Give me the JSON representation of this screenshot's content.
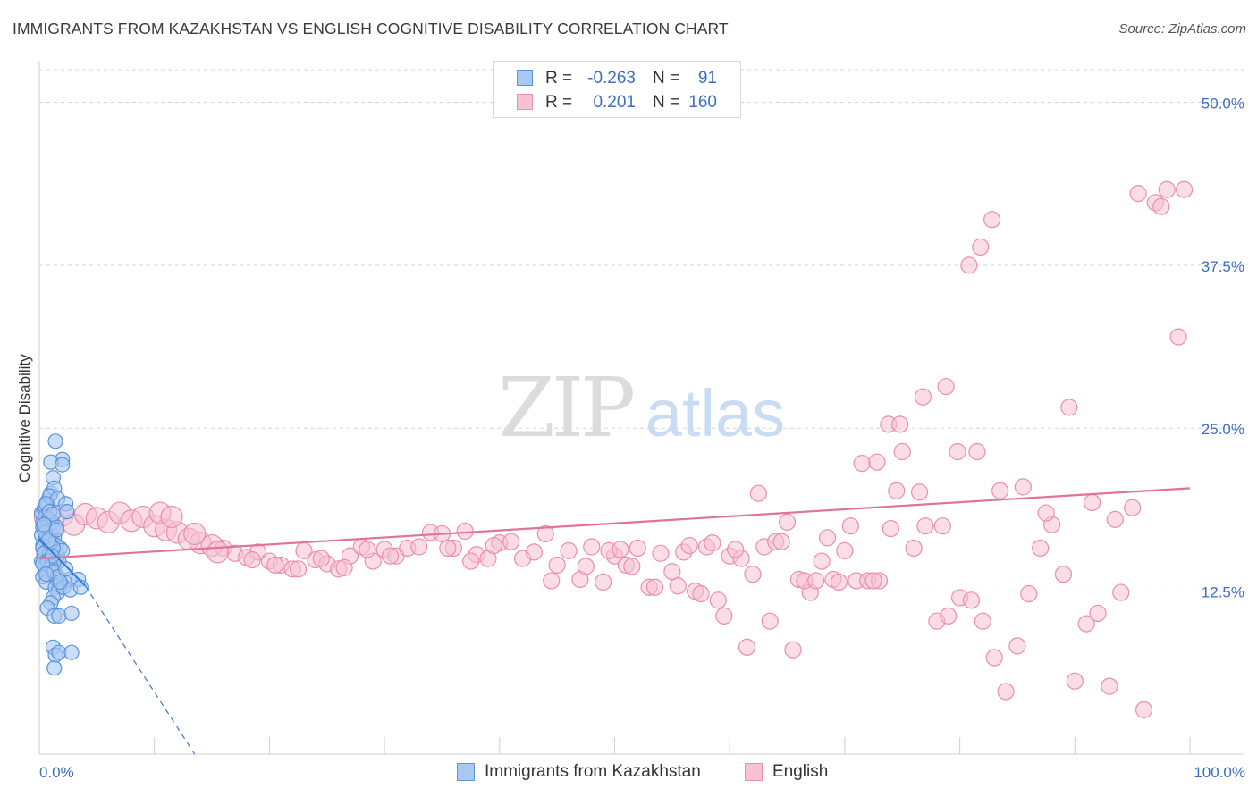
{
  "title": "IMMIGRANTS FROM KAZAKHSTAN VS ENGLISH COGNITIVE DISABILITY CORRELATION CHART",
  "source": "Source: ZipAtlas.com",
  "watermark": {
    "zip": "ZIP",
    "atlas": "atlas"
  },
  "legend_top": [
    {
      "r_label": "R =",
      "r_value": "-0.263",
      "n_label": "N =",
      "n_value": "91"
    },
    {
      "r_label": "R =",
      "r_value": "0.201",
      "n_label": "N =",
      "n_value": "160"
    }
  ],
  "colors": {
    "blue_fill": "#a9c8f1",
    "blue_stroke": "#5b93dc",
    "blue_line": "#3a78d4",
    "pink_fill": "#f6c1d1",
    "pink_stroke": "#ea8eab",
    "pink_line": "#e0739a",
    "grid": "#d4d4d4",
    "tick_text": "#3a6fc4"
  },
  "chart_data": {
    "type": "scatter",
    "title": "IMMIGRANTS FROM KAZAKHSTAN VS ENGLISH COGNITIVE DISABILITY CORRELATION CHART",
    "xlabel": "",
    "ylabel": "Cognitive Disability",
    "xlim": [
      0,
      100
    ],
    "ylim": [
      0,
      52.5
    ],
    "x_tick_labels": [
      "0.0%",
      "100.0%"
    ],
    "y_ticks": [
      12.5,
      25.0,
      37.5,
      50.0
    ],
    "y_tick_labels": [
      "12.5%",
      "25.0%",
      "37.5%",
      "50.0%"
    ],
    "grid": true,
    "legend_position": "bottom",
    "series": [
      {
        "name": "Immigrants from Kazakhstan",
        "trend": {
          "x": [
            0,
            4
          ],
          "y": [
            16.5,
            12.9
          ],
          "dashed_to": [
            13.5,
            0
          ]
        },
        "points": [
          [
            0.2,
            18.5
          ],
          [
            0.3,
            17.8
          ],
          [
            0.4,
            17.2
          ],
          [
            0.2,
            16.8
          ],
          [
            0.5,
            16.4
          ],
          [
            0.3,
            16.0
          ],
          [
            0.6,
            15.6
          ],
          [
            0.4,
            15.2
          ],
          [
            0.2,
            14.8
          ],
          [
            0.5,
            14.4
          ],
          [
            0.7,
            14.0
          ],
          [
            0.3,
            13.6
          ],
          [
            0.6,
            13.2
          ],
          [
            0.8,
            17.6
          ],
          [
            0.9,
            18.0
          ],
          [
            0.4,
            18.8
          ],
          [
            0.7,
            19.4
          ],
          [
            1.0,
            20.0
          ],
          [
            0.5,
            19.0
          ],
          [
            0.3,
            15.8
          ],
          [
            0.9,
            15.4
          ],
          [
            1.1,
            15.0
          ],
          [
            1.2,
            16.2
          ],
          [
            1.3,
            16.6
          ],
          [
            1.0,
            17.0
          ],
          [
            0.8,
            16.8
          ],
          [
            1.4,
            15.6
          ],
          [
            1.5,
            16.0
          ],
          [
            1.6,
            15.2
          ],
          [
            1.2,
            14.6
          ],
          [
            1.1,
            14.2
          ],
          [
            1.7,
            14.8
          ],
          [
            1.8,
            15.8
          ],
          [
            2.0,
            15.6
          ],
          [
            1.3,
            13.8
          ],
          [
            1.5,
            13.4
          ],
          [
            1.9,
            13.0
          ],
          [
            2.2,
            13.2
          ],
          [
            1.4,
            12.8
          ],
          [
            1.6,
            12.4
          ],
          [
            1.2,
            12.0
          ],
          [
            1.0,
            11.6
          ],
          [
            0.7,
            11.2
          ],
          [
            1.3,
            10.6
          ],
          [
            1.7,
            10.6
          ],
          [
            2.8,
            10.8
          ],
          [
            1.2,
            8.2
          ],
          [
            1.4,
            7.6
          ],
          [
            1.7,
            7.8
          ],
          [
            2.8,
            7.8
          ],
          [
            1.3,
            6.6
          ],
          [
            1.4,
            24.0
          ],
          [
            2.0,
            22.6
          ],
          [
            1.0,
            22.4
          ],
          [
            2.0,
            22.2
          ],
          [
            1.2,
            21.2
          ],
          [
            1.3,
            20.4
          ],
          [
            0.9,
            19.8
          ],
          [
            1.6,
            19.6
          ],
          [
            0.6,
            19.2
          ],
          [
            2.3,
            19.2
          ],
          [
            2.4,
            18.6
          ],
          [
            0.5,
            18.2
          ],
          [
            0.8,
            18.0
          ],
          [
            1.1,
            17.8
          ],
          [
            1.5,
            17.4
          ],
          [
            0.3,
            17.4
          ],
          [
            0.6,
            16.6
          ],
          [
            0.9,
            16.2
          ],
          [
            1.2,
            15.8
          ],
          [
            0.4,
            15.4
          ],
          [
            0.7,
            14.8
          ],
          [
            1.0,
            14.4
          ],
          [
            1.3,
            14.0
          ],
          [
            1.6,
            13.6
          ],
          [
            2.6,
            13.4
          ],
          [
            3.4,
            13.4
          ],
          [
            2.1,
            12.8
          ],
          [
            2.7,
            12.6
          ],
          [
            3.6,
            12.8
          ],
          [
            0.5,
            17.0
          ],
          [
            0.8,
            16.4
          ],
          [
            1.1,
            15.2
          ],
          [
            0.3,
            14.6
          ],
          [
            0.6,
            13.8
          ],
          [
            1.8,
            13.2
          ],
          [
            2.3,
            14.2
          ],
          [
            0.9,
            18.6
          ],
          [
            1.2,
            18.4
          ],
          [
            0.4,
            17.6
          ],
          [
            1.5,
            17.2
          ]
        ]
      },
      {
        "name": "English",
        "trend": {
          "x": [
            0,
            100
          ],
          "y": [
            15.0,
            20.4
          ]
        },
        "points": [
          [
            0.5,
            18.2
          ],
          [
            1.2,
            17.9
          ],
          [
            2.0,
            18.3
          ],
          [
            3.0,
            17.6
          ],
          [
            4.0,
            18.4
          ],
          [
            5.0,
            18.1
          ],
          [
            6.0,
            17.8
          ],
          [
            7.0,
            18.5
          ],
          [
            8.0,
            17.9
          ],
          [
            9.0,
            18.2
          ],
          [
            10.0,
            17.5
          ],
          [
            11.0,
            17.2
          ],
          [
            12.0,
            17.0
          ],
          [
            13.0,
            16.5
          ],
          [
            14.0,
            16.2
          ],
          [
            15.0,
            16.0
          ],
          [
            16.0,
            15.8
          ],
          [
            17.0,
            15.4
          ],
          [
            18.0,
            15.1
          ],
          [
            19.0,
            15.5
          ],
          [
            20.0,
            14.8
          ],
          [
            21.0,
            14.5
          ],
          [
            22.0,
            14.2
          ],
          [
            23.0,
            15.6
          ],
          [
            24.0,
            14.9
          ],
          [
            25.0,
            14.6
          ],
          [
            26.0,
            14.2
          ],
          [
            27.0,
            15.2
          ],
          [
            28.0,
            15.9
          ],
          [
            29.0,
            14.8
          ],
          [
            30.0,
            15.7
          ],
          [
            31.0,
            15.2
          ],
          [
            32.0,
            15.8
          ],
          [
            33.0,
            15.9
          ],
          [
            34.0,
            17.0
          ],
          [
            35.0,
            16.9
          ],
          [
            36.0,
            15.8
          ],
          [
            37.0,
            17.1
          ],
          [
            38.0,
            15.3
          ],
          [
            39.0,
            15.0
          ],
          [
            40.0,
            16.2
          ],
          [
            41.0,
            16.3
          ],
          [
            42.0,
            15.0
          ],
          [
            43.0,
            15.5
          ],
          [
            44.0,
            16.9
          ],
          [
            45.0,
            14.5
          ],
          [
            46.0,
            15.6
          ],
          [
            47.0,
            13.4
          ],
          [
            48.0,
            15.9
          ],
          [
            49.0,
            13.2
          ],
          [
            50.0,
            15.2
          ],
          [
            51.0,
            14.5
          ],
          [
            52.0,
            15.8
          ],
          [
            53.0,
            12.8
          ],
          [
            54.0,
            15.4
          ],
          [
            55.0,
            14.0
          ],
          [
            56.0,
            15.5
          ],
          [
            57.0,
            12.5
          ],
          [
            58.0,
            15.9
          ],
          [
            59.0,
            11.8
          ],
          [
            60.0,
            15.2
          ],
          [
            61.0,
            15.0
          ],
          [
            62.0,
            13.8
          ],
          [
            63.0,
            15.9
          ],
          [
            64.0,
            16.3
          ],
          [
            65.0,
            17.8
          ],
          [
            66.0,
            13.4
          ],
          [
            67.0,
            12.4
          ],
          [
            68.0,
            14.8
          ],
          [
            69.0,
            13.4
          ],
          [
            70.0,
            15.6
          ],
          [
            71.0,
            13.3
          ],
          [
            72.0,
            13.3
          ],
          [
            73.0,
            13.3
          ],
          [
            74.0,
            17.3
          ],
          [
            75.0,
            23.2
          ],
          [
            76.0,
            15.8
          ],
          [
            77.0,
            17.5
          ],
          [
            78.0,
            10.2
          ],
          [
            79.0,
            10.6
          ],
          [
            80.0,
            12.0
          ],
          [
            81.0,
            11.8
          ],
          [
            82.0,
            10.2
          ],
          [
            83.0,
            7.4
          ],
          [
            84.0,
            4.8
          ],
          [
            85.0,
            8.3
          ],
          [
            86.0,
            12.3
          ],
          [
            87.0,
            15.8
          ],
          [
            88.0,
            17.6
          ],
          [
            89.0,
            13.8
          ],
          [
            90.0,
            5.6
          ],
          [
            91.0,
            10.0
          ],
          [
            92.0,
            10.8
          ],
          [
            93.0,
            5.2
          ],
          [
            94.0,
            12.4
          ],
          [
            95.0,
            18.9
          ],
          [
            96.0,
            3.4
          ],
          [
            97.0,
            42.3
          ],
          [
            98.0,
            43.3
          ],
          [
            99.0,
            32.0
          ],
          [
            10.5,
            18.5
          ],
          [
            11.5,
            18.2
          ],
          [
            13.5,
            16.9
          ],
          [
            15.5,
            15.5
          ],
          [
            18.5,
            14.9
          ],
          [
            20.5,
            14.5
          ],
          [
            22.5,
            14.2
          ],
          [
            24.5,
            15.0
          ],
          [
            26.5,
            14.3
          ],
          [
            28.5,
            15.7
          ],
          [
            30.5,
            15.2
          ],
          [
            35.5,
            15.8
          ],
          [
            37.5,
            14.8
          ],
          [
            39.5,
            16.0
          ],
          [
            44.5,
            13.3
          ],
          [
            47.5,
            14.4
          ],
          [
            49.5,
            15.6
          ],
          [
            53.5,
            12.8
          ],
          [
            56.5,
            16.0
          ],
          [
            58.5,
            16.2
          ],
          [
            60.5,
            15.7
          ],
          [
            62.5,
            20.0
          ],
          [
            64.5,
            16.3
          ],
          [
            66.5,
            13.3
          ],
          [
            68.5,
            16.6
          ],
          [
            70.5,
            17.5
          ],
          [
            72.5,
            13.3
          ],
          [
            74.5,
            20.2
          ],
          [
            76.5,
            20.1
          ],
          [
            78.5,
            17.5
          ],
          [
            81.5,
            23.2
          ],
          [
            83.5,
            20.2
          ],
          [
            85.5,
            20.5
          ],
          [
            87.5,
            18.5
          ],
          [
            89.5,
            26.6
          ],
          [
            91.5,
            19.3
          ],
          [
            93.5,
            18.0
          ],
          [
            95.5,
            43.0
          ],
          [
            97.5,
            42.0
          ],
          [
            99.5,
            43.3
          ],
          [
            50.5,
            15.7
          ],
          [
            51.5,
            14.4
          ],
          [
            55.5,
            12.9
          ],
          [
            57.5,
            12.3
          ],
          [
            59.5,
            10.6
          ],
          [
            61.5,
            8.2
          ],
          [
            63.5,
            10.2
          ],
          [
            65.5,
            8.0
          ],
          [
            67.5,
            13.3
          ],
          [
            69.5,
            13.2
          ],
          [
            71.5,
            22.3
          ],
          [
            72.8,
            22.4
          ],
          [
            73.8,
            25.3
          ],
          [
            74.8,
            25.3
          ],
          [
            76.8,
            27.4
          ],
          [
            78.8,
            28.2
          ],
          [
            79.8,
            23.2
          ],
          [
            80.8,
            37.5
          ],
          [
            81.8,
            38.9
          ],
          [
            82.8,
            41.0
          ]
        ]
      }
    ]
  },
  "legend_bottom": [
    "Immigrants from Kazakhstan",
    "English"
  ]
}
